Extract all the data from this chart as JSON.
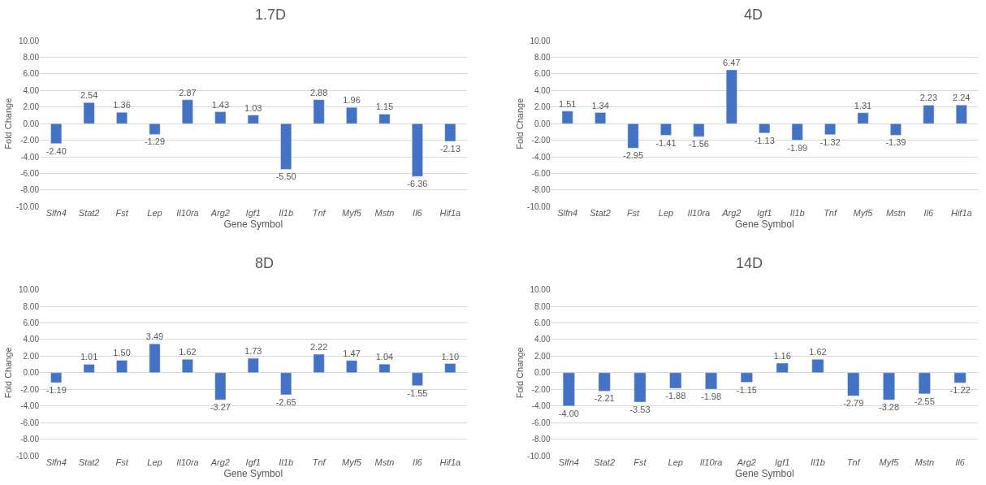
{
  "chart_data": [
    {
      "type": "bar",
      "title": "1.7D",
      "xlabel": "Gene Symbol",
      "ylabel": "Fold Change",
      "categories": [
        "Slfn4",
        "Stat2",
        "Fst",
        "Lep",
        "Il10ra",
        "Arg2",
        "Igf1",
        "Il1b",
        "Tnf",
        "Myf5",
        "Mstn",
        "Il6",
        "Hif1a"
      ],
      "values": [
        -2.4,
        2.54,
        1.36,
        -1.29,
        2.87,
        1.43,
        1.03,
        -5.5,
        2.88,
        1.96,
        1.15,
        -6.36,
        -2.13
      ],
      "value_labels": [
        "-2.40",
        "2.54",
        "1.36",
        "-1.29",
        "2.87",
        "1.43",
        "1.03",
        "-5.50",
        "2.88",
        "1.96",
        "1.15",
        "-6.36",
        "-2.13"
      ],
      "color": "#4472c4",
      "grid": "y",
      "ylim": [
        -10,
        10
      ],
      "yticks": [
        {
          "value": -10,
          "label": "-10.00"
        },
        {
          "value": -8,
          "label": "-8.00"
        },
        {
          "value": -6,
          "label": "-6.00"
        },
        {
          "value": -4,
          "label": "-4.00"
        },
        {
          "value": -2,
          "label": "-2.00"
        },
        {
          "value": 0,
          "label": "0.00"
        },
        {
          "value": 2,
          "label": "2.00"
        },
        {
          "value": 4,
          "label": "4.00"
        },
        {
          "value": 6,
          "label": "6.00"
        },
        {
          "value": 8,
          "label": "8.00"
        },
        {
          "value": 10,
          "label": "10.00"
        }
      ]
    },
    {
      "type": "bar",
      "title": "4D",
      "xlabel": "Gene Symbol",
      "ylabel": "Fold Change",
      "categories": [
        "Slfn4",
        "Stat2",
        "Fst",
        "Lep",
        "Il10ra",
        "Arg2",
        "Igf1",
        "Il1b",
        "Tnf",
        "Myf5",
        "Mstn",
        "Il6",
        "Hif1a"
      ],
      "values": [
        1.51,
        1.34,
        -2.95,
        -1.41,
        -1.56,
        6.47,
        -1.13,
        -1.99,
        -1.32,
        1.31,
        -1.39,
        2.23,
        2.24
      ],
      "value_labels": [
        "1.51",
        "1.34",
        "-2.95",
        "-1.41",
        "-1.56",
        "6.47",
        "-1.13",
        "-1.99",
        "-1.32",
        "1.31",
        "-1.39",
        "2.23",
        "2.24"
      ],
      "color": "#4472c4",
      "grid": "y",
      "ylim": [
        -10,
        10
      ],
      "yticks": [
        {
          "value": -10,
          "label": "-10.00"
        },
        {
          "value": -8,
          "label": "-8.00"
        },
        {
          "value": -6,
          "label": "-6.00"
        },
        {
          "value": -4,
          "label": "-4.00"
        },
        {
          "value": -2,
          "label": "-2.00"
        },
        {
          "value": 0,
          "label": "0.00"
        },
        {
          "value": 2,
          "label": "2.00"
        },
        {
          "value": 4,
          "label": "4.00"
        },
        {
          "value": 6,
          "label": "6.00"
        },
        {
          "value": 8,
          "label": "8.00"
        },
        {
          "value": 10,
          "label": "10.00"
        }
      ]
    },
    {
      "type": "bar",
      "title": "8D",
      "xlabel": "Gene Symbol",
      "ylabel": "Fold Change",
      "categories": [
        "Slfn4",
        "Stat2",
        "Fst",
        "Lep",
        "Il10ra",
        "Arg2",
        "Igf1",
        "Il1b",
        "Tnf",
        "Myf5",
        "Mstn",
        "Il6",
        "Hif1a"
      ],
      "values": [
        -1.19,
        1.01,
        1.5,
        3.49,
        1.62,
        -3.27,
        1.73,
        -2.65,
        2.22,
        1.47,
        1.04,
        -1.55,
        1.1
      ],
      "value_labels": [
        "-1.19",
        "1.01",
        "1.50",
        "3.49",
        "1.62",
        "-3.27",
        "1.73",
        "-2.65",
        "2.22",
        "1.47",
        "1.04",
        "-1.55",
        "1.10"
      ],
      "color": "#4472c4",
      "grid": "y",
      "ylim": [
        -10,
        10
      ],
      "yticks": [
        {
          "value": -10,
          "label": "-10.00"
        },
        {
          "value": -8,
          "label": "-8.00"
        },
        {
          "value": -6,
          "label": "-6.00"
        },
        {
          "value": -4,
          "label": "-4.00"
        },
        {
          "value": -2,
          "label": "-2.00"
        },
        {
          "value": 0,
          "label": "0.00"
        },
        {
          "value": 2,
          "label": "2.00"
        },
        {
          "value": 4,
          "label": "4.00"
        },
        {
          "value": 6,
          "label": "6.00"
        },
        {
          "value": 8,
          "label": "8.00"
        },
        {
          "value": 10,
          "label": "10.00"
        }
      ]
    },
    {
      "type": "bar",
      "title": "14D",
      "xlabel": "Gene Symbol",
      "ylabel": "Fold Change",
      "categories": [
        "Slfn4",
        "Stat2",
        "Fst",
        "Lep",
        "Il10ra",
        "Arg2",
        "Igf1",
        "Il1b",
        "Tnf",
        "Myf5",
        "Mstn",
        "Il6"
      ],
      "values": [
        -4.0,
        -2.21,
        -3.53,
        -1.88,
        -1.98,
        -1.15,
        1.16,
        1.62,
        -2.79,
        -3.28,
        -2.55,
        -1.22
      ],
      "value_labels": [
        "-4.00",
        "-2.21",
        "-3.53",
        "-1.88",
        "-1.98",
        "-1.15",
        "1.16",
        "1.62",
        "-2.79",
        "-3.28",
        "-2.55",
        "-1.22"
      ],
      "color": "#4472c4",
      "grid": "y",
      "ylim": [
        -10,
        10
      ],
      "yticks": [
        {
          "value": -10,
          "label": "-10.00"
        },
        {
          "value": -8,
          "label": "-8.00"
        },
        {
          "value": -6,
          "label": "-6.00"
        },
        {
          "value": -4,
          "label": "-4.00"
        },
        {
          "value": -2,
          "label": "-2.00"
        },
        {
          "value": 0,
          "label": "0.00"
        },
        {
          "value": 2,
          "label": "2.00"
        },
        {
          "value": 4,
          "label": "4.00"
        },
        {
          "value": 6,
          "label": "6.00"
        },
        {
          "value": 8,
          "label": "8.00"
        },
        {
          "value": 10,
          "label": "10.00"
        }
      ]
    }
  ]
}
